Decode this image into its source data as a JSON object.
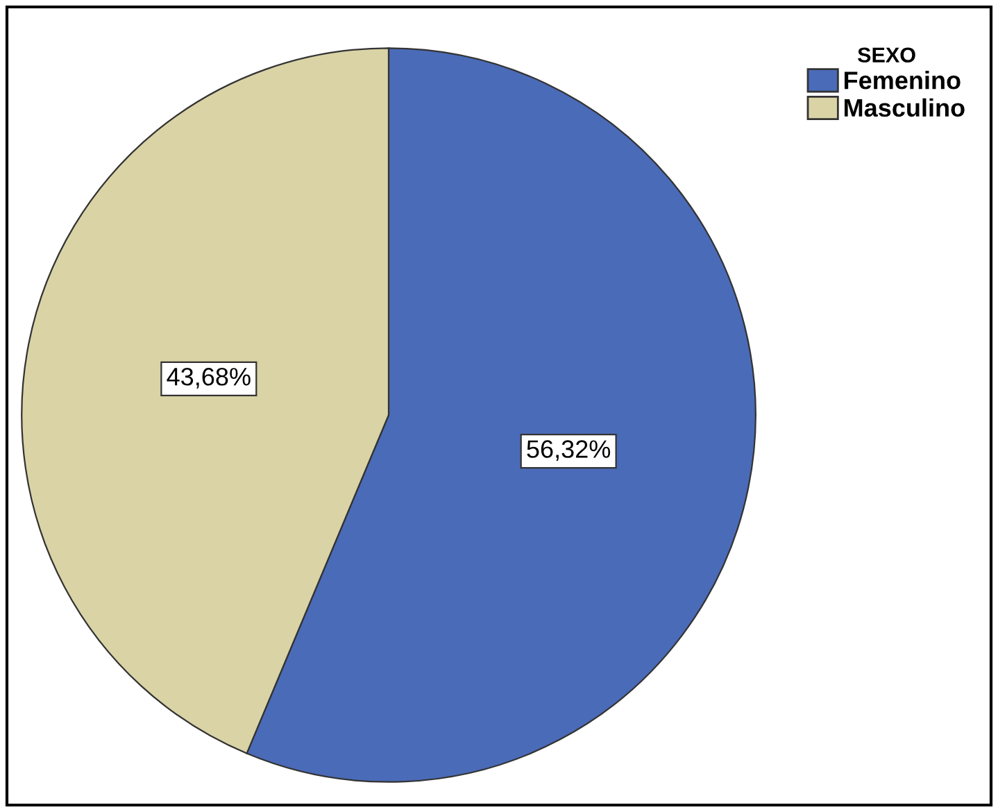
{
  "chart_data": {
    "type": "pie",
    "legend_title": "SEXO",
    "categories": [
      "Femenino",
      "Masculino"
    ],
    "values": [
      56.32,
      43.68
    ],
    "colors": [
      "#4a6bb8",
      "#d9d3a6"
    ],
    "value_labels": [
      "56,32%",
      "43,68%"
    ],
    "legend": "top right"
  }
}
